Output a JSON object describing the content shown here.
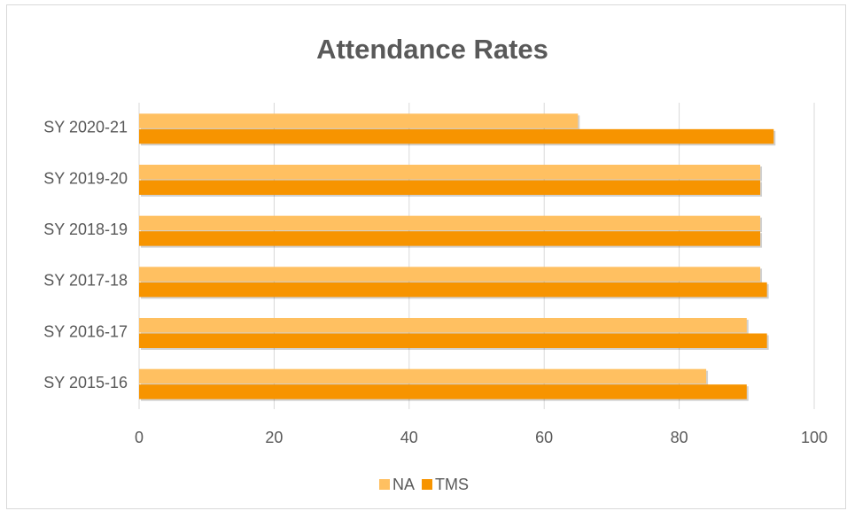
{
  "chart_data": {
    "type": "barh",
    "title": "Attendance Rates",
    "categories": [
      "SY 2015-16",
      "SY 2016-17",
      "SY 2017-18",
      "SY 2018-19",
      "SY 2019-20",
      "SY 2020-21"
    ],
    "series": [
      {
        "name": "NA",
        "color": "#ffc061",
        "values": [
          84,
          90,
          92,
          92,
          92,
          65
        ]
      },
      {
        "name": "TMS",
        "color": "#f79400",
        "values": [
          90,
          93,
          93,
          92,
          92,
          94
        ]
      }
    ],
    "xlim": [
      0,
      100
    ],
    "xticks": [
      0,
      20,
      40,
      60,
      80,
      100
    ],
    "grid": true,
    "legend": "bottom"
  }
}
